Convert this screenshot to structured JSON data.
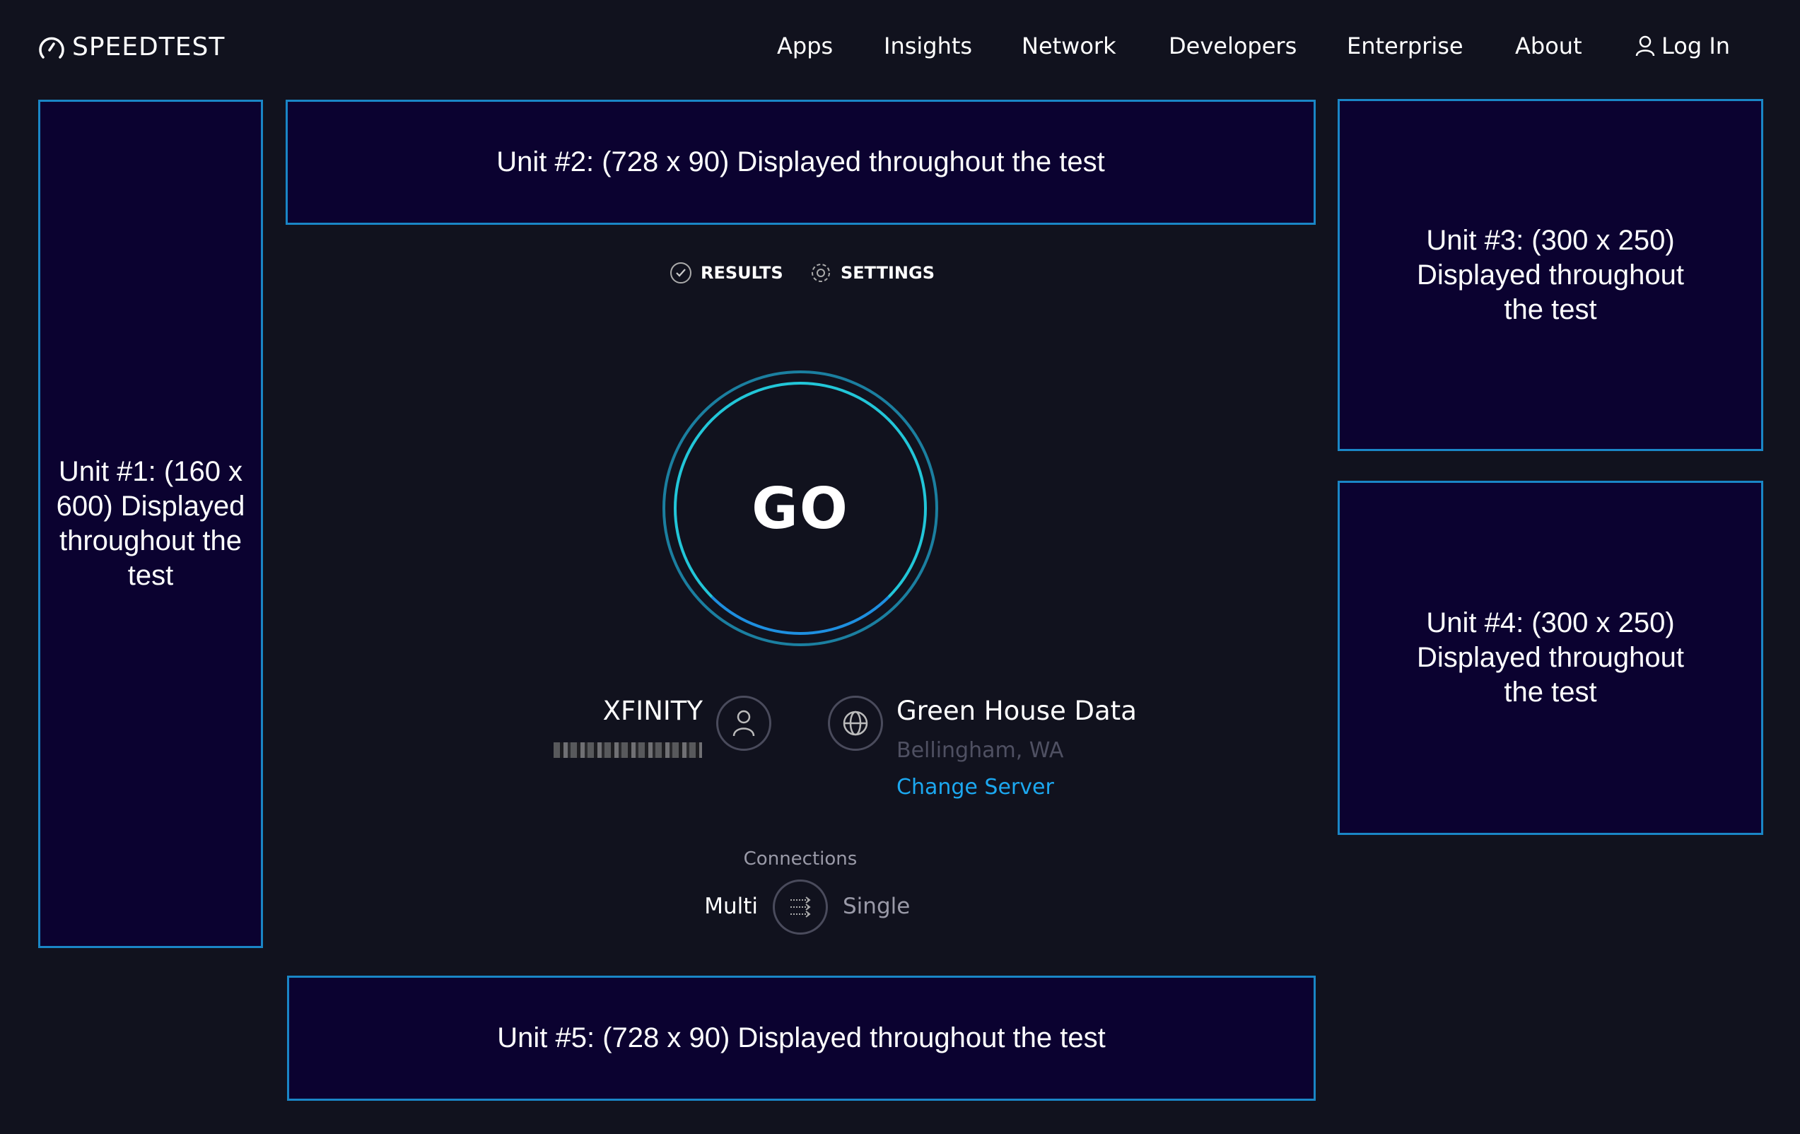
{
  "header": {
    "logo_text": "SPEEDTEST",
    "nav": [
      "Apps",
      "Insights",
      "Network",
      "Developers",
      "Enterprise",
      "About"
    ],
    "login": "Log In"
  },
  "ads": {
    "unit1": "Unit #1: (160 x 600) Displayed throughout the test",
    "unit2": "Unit #2: (728 x 90) Displayed throughout the test",
    "unit3": "Unit #3: (300 x 250) Displayed throughout the test",
    "unit4": "Unit #4: (300 x 250) Displayed throughout the test",
    "unit5": "Unit #5: (728 x 90) Displayed throughout the test"
  },
  "tabs": {
    "results": "RESULTS",
    "settings": "SETTINGS"
  },
  "go_label": "GO",
  "isp": {
    "name": "XFINITY"
  },
  "server": {
    "name": "Green House Data",
    "location": "Bellingham, WA",
    "change": "Change Server"
  },
  "connections": {
    "label": "Connections",
    "multi": "Multi",
    "single": "Single",
    "selected": "Multi"
  },
  "colors": {
    "background": "#11121e",
    "ad_border": "#1a86c6",
    "accent": "#1ca8f0",
    "ring": "#22c6d8"
  }
}
